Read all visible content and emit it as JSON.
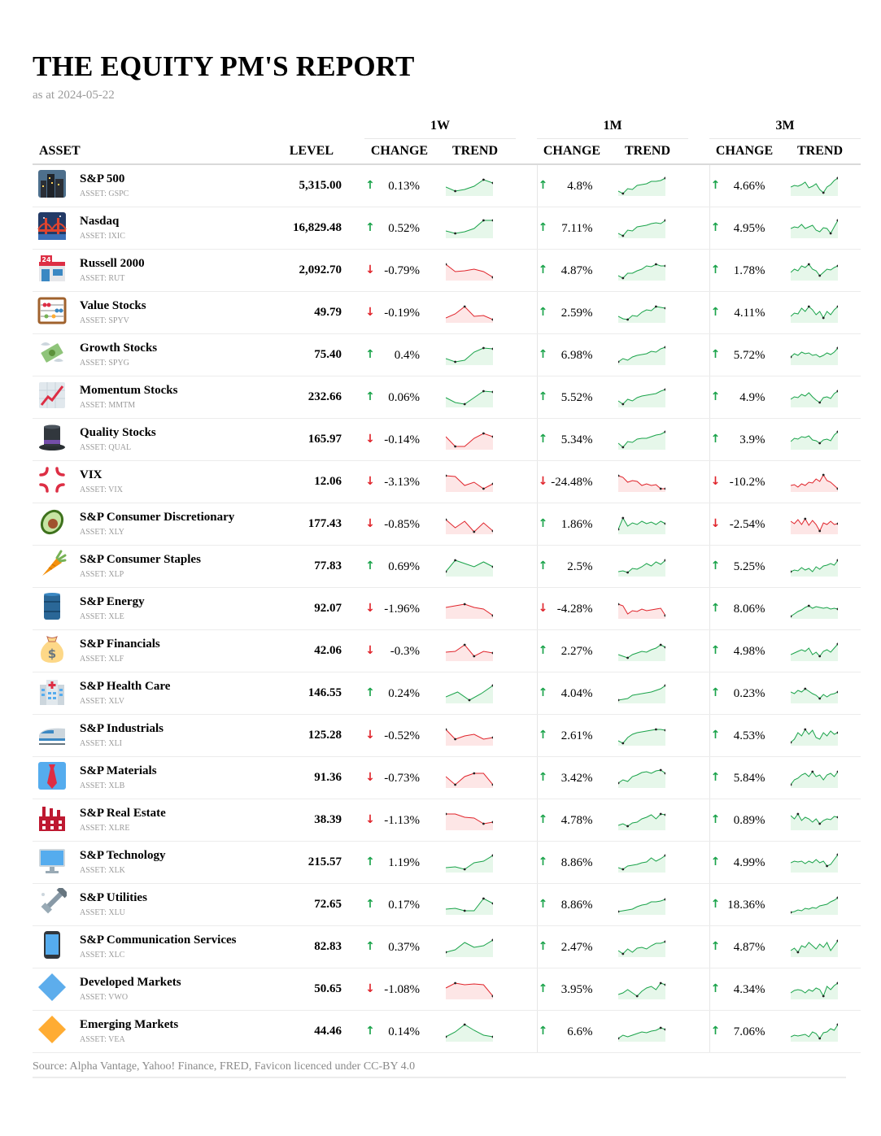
{
  "report": {
    "title": "THE EQUITY PM'S REPORT",
    "subtitle": "as at 2024-05-22",
    "source": "Source: Alpha Vantage, Yahoo! Finance, FRED, Favicon licenced under CC-BY 4.0"
  },
  "columns": {
    "asset": "ASSET",
    "level": "LEVEL",
    "change": "CHANGE",
    "trend": "TREND",
    "periods": [
      "1W",
      "1M",
      "3M"
    ]
  },
  "colors": {
    "up": "#1aa34a",
    "down": "#e0242b",
    "up_fill": "#e6f7ea",
    "down_fill": "#fde6e6"
  },
  "rows": [
    {
      "name": "S&P 500",
      "ticker": "ASSET: GSPC",
      "level": "5,315.00",
      "icon": "night-city-icon",
      "c1w": "0.13%",
      "c1m": "4.8%",
      "c3m": "4.66%"
    },
    {
      "name": "Nasdaq",
      "ticker": "ASSET: IXIC",
      "level": "16,829.48",
      "icon": "bridge-at-night-icon",
      "c1w": "0.52%",
      "c1m": "7.11%",
      "c3m": "4.95%"
    },
    {
      "name": "Russell 2000",
      "ticker": "ASSET: RUT",
      "level": "2,092.70",
      "icon": "convenience-store-icon",
      "c1w": "-0.79%",
      "c1m": "4.87%",
      "c3m": "1.78%"
    },
    {
      "name": "Value Stocks",
      "ticker": "ASSET: SPYV",
      "level": "49.79",
      "icon": "abacus-icon",
      "c1w": "-0.19%",
      "c1m": "2.59%",
      "c3m": "4.11%"
    },
    {
      "name": "Growth Stocks",
      "ticker": "ASSET: SPYG",
      "level": "75.40",
      "icon": "money-with-wings-icon",
      "c1w": "0.4%",
      "c1m": "6.98%",
      "c3m": "5.72%"
    },
    {
      "name": "Momentum Stocks",
      "ticker": "ASSET: MMTM",
      "level": "232.66",
      "icon": "chart-increasing-icon",
      "c1w": "0.06%",
      "c1m": "5.52%",
      "c3m": "4.9%"
    },
    {
      "name": "Quality Stocks",
      "ticker": "ASSET: QUAL",
      "level": "165.97",
      "icon": "top-hat-icon",
      "c1w": "-0.14%",
      "c1m": "5.34%",
      "c3m": "3.9%"
    },
    {
      "name": "VIX",
      "ticker": "ASSET: VIX",
      "level": "12.06",
      "icon": "anger-symbol-icon",
      "c1w": "-3.13%",
      "c1m": "-24.48%",
      "c3m": "-10.2%"
    },
    {
      "name": "S&P Consumer Discretionary",
      "ticker": "ASSET: XLY",
      "level": "177.43",
      "icon": "avocado-icon",
      "c1w": "-0.85%",
      "c1m": "1.86%",
      "c3m": "-2.54%"
    },
    {
      "name": "S&P Consumer Staples",
      "ticker": "ASSET: XLP",
      "level": "77.83",
      "icon": "carrot-icon",
      "c1w": "0.69%",
      "c1m": "2.5%",
      "c3m": "5.25%"
    },
    {
      "name": "S&P Energy",
      "ticker": "ASSET: XLE",
      "level": "92.07",
      "icon": "oil-drum-icon",
      "c1w": "-1.96%",
      "c1m": "-4.28%",
      "c3m": "8.06%"
    },
    {
      "name": "S&P Financials",
      "ticker": "ASSET: XLF",
      "level": "42.06",
      "icon": "money-bag-icon",
      "c1w": "-0.3%",
      "c1m": "2.27%",
      "c3m": "4.98%"
    },
    {
      "name": "S&P Health Care",
      "ticker": "ASSET: XLV",
      "level": "146.55",
      "icon": "hospital-icon",
      "c1w": "0.24%",
      "c1m": "4.04%",
      "c3m": "0.23%"
    },
    {
      "name": "S&P Industrials",
      "ticker": "ASSET: XLI",
      "level": "125.28",
      "icon": "bullet-train-icon",
      "c1w": "-0.52%",
      "c1m": "2.61%",
      "c3m": "4.53%"
    },
    {
      "name": "S&P Materials",
      "ticker": "ASSET: XLB",
      "level": "91.36",
      "icon": "necktie-icon",
      "c1w": "-0.73%",
      "c1m": "3.42%",
      "c3m": "5.84%"
    },
    {
      "name": "S&P Real Estate",
      "ticker": "ASSET: XLRE",
      "level": "38.39",
      "icon": "factory-icon",
      "c1w": "-1.13%",
      "c1m": "4.78%",
      "c3m": "0.89%"
    },
    {
      "name": "S&P Technology",
      "ticker": "ASSET: XLK",
      "level": "215.57",
      "icon": "desktop-computer-icon",
      "c1w": "1.19%",
      "c1m": "8.86%",
      "c3m": "4.99%"
    },
    {
      "name": "S&P Utilities",
      "ticker": "ASSET: XLU",
      "level": "72.65",
      "icon": "nut-and-bolt-icon",
      "c1w": "0.17%",
      "c1m": "8.86%",
      "c3m": "18.36%"
    },
    {
      "name": "S&P Communication Services",
      "ticker": "ASSET: XLC",
      "level": "82.83",
      "icon": "mobile-phone-icon",
      "c1w": "0.37%",
      "c1m": "2.47%",
      "c3m": "4.87%"
    },
    {
      "name": "Developed Markets",
      "ticker": "ASSET: VWO",
      "level": "50.65",
      "icon": "large-blue-diamond-icon",
      "c1w": "-1.08%",
      "c1m": "3.95%",
      "c3m": "4.34%"
    },
    {
      "name": "Emerging Markets",
      "ticker": "ASSET: VEA",
      "level": "44.46",
      "icon": "large-orange-diamond-icon",
      "c1w": "0.14%",
      "c1m": "6.6%",
      "c3m": "7.06%"
    }
  ]
}
